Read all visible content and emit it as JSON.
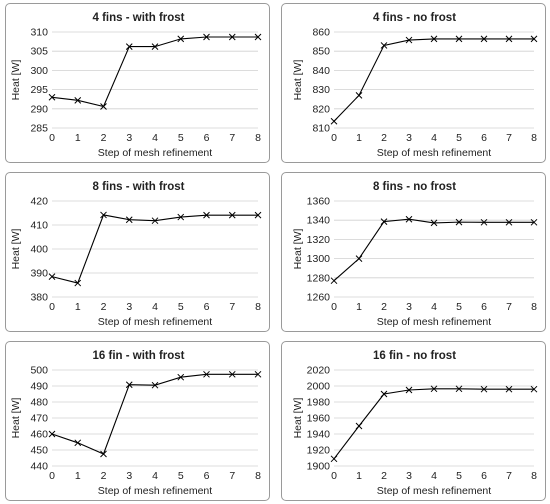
{
  "chart_data": [
    {
      "type": "line",
      "title": "4 fins - with frost",
      "xlabel": "Step of mesh refinement",
      "ylabel": "Heat [W]",
      "x": [
        0,
        1,
        2,
        3,
        4,
        5,
        6,
        7,
        8
      ],
      "y": [
        293,
        292.2,
        290.6,
        306.2,
        306.2,
        308.2,
        308.7,
        308.7,
        308.7
      ],
      "xlim": [
        0,
        8
      ],
      "ylim": [
        285,
        310
      ],
      "xticks": [
        "0",
        "1",
        "2",
        "3",
        "4",
        "5",
        "6",
        "7",
        "8"
      ],
      "yticks": [
        "285",
        "290",
        "295",
        "300",
        "305",
        "310"
      ],
      "grid": "horizontal"
    },
    {
      "type": "line",
      "title": "4 fins - no frost",
      "xlabel": "Step of mesh refinement",
      "ylabel": "Heat [W]",
      "x": [
        0,
        1,
        2,
        3,
        4,
        5,
        6,
        7,
        8
      ],
      "y": [
        813.5,
        827,
        853,
        855.8,
        856.4,
        856.4,
        856.4,
        856.4,
        856.4
      ],
      "xlim": [
        0,
        8
      ],
      "ylim": [
        810,
        860
      ],
      "xticks": [
        "0",
        "1",
        "2",
        "3",
        "4",
        "5",
        "6",
        "7",
        "8"
      ],
      "yticks": [
        "810",
        "820",
        "830",
        "840",
        "850",
        "860"
      ],
      "grid": "horizontal"
    },
    {
      "type": "line",
      "title": "8 fins - with frost",
      "xlabel": "Step of mesh refinement",
      "ylabel": "Heat [W]",
      "x": [
        0,
        1,
        2,
        3,
        4,
        5,
        6,
        7,
        8
      ],
      "y": [
        388.5,
        385.8,
        414.2,
        412.2,
        411.8,
        413.3,
        414.1,
        414.1,
        414.1
      ],
      "xlim": [
        0,
        8
      ],
      "ylim": [
        380,
        420
      ],
      "xticks": [
        "0",
        "1",
        "2",
        "3",
        "4",
        "5",
        "6",
        "7",
        "8"
      ],
      "yticks": [
        "380",
        "390",
        "400",
        "410",
        "420"
      ],
      "grid": "horizontal"
    },
    {
      "type": "line",
      "title": "8 fins - no frost",
      "xlabel": "Step of mesh refinement",
      "ylabel": "Heat [W]",
      "x": [
        0,
        1,
        2,
        3,
        4,
        5,
        6,
        7,
        8
      ],
      "y": [
        1277,
        1300,
        1338.5,
        1341,
        1337.2,
        1338,
        1337.8,
        1337.8,
        1337.8
      ],
      "xlim": [
        0,
        8
      ],
      "ylim": [
        1260,
        1360
      ],
      "xticks": [
        "0",
        "1",
        "2",
        "3",
        "4",
        "5",
        "6",
        "7",
        "8"
      ],
      "yticks": [
        "1260",
        "1280",
        "1300",
        "1320",
        "1340",
        "1360"
      ],
      "grid": "horizontal"
    },
    {
      "type": "line",
      "title": "16 fin - with frost",
      "xlabel": "Step of mesh refinement",
      "ylabel": "Heat [W]",
      "x": [
        0,
        1,
        2,
        3,
        4,
        5,
        6,
        7,
        8
      ],
      "y": [
        460,
        454.5,
        447.5,
        490.8,
        490.5,
        495.5,
        497.3,
        497.3,
        497.3
      ],
      "xlim": [
        0,
        8
      ],
      "ylim": [
        440,
        500
      ],
      "xticks": [
        "0",
        "1",
        "2",
        "3",
        "4",
        "5",
        "6",
        "7",
        "8"
      ],
      "yticks": [
        "440",
        "450",
        "460",
        "470",
        "480",
        "490",
        "500"
      ],
      "grid": "horizontal"
    },
    {
      "type": "line",
      "title": "16 fin - no frost",
      "xlabel": "Step of mesh refinement",
      "ylabel": "Heat [W]",
      "x": [
        0,
        1,
        2,
        3,
        4,
        5,
        6,
        7,
        8
      ],
      "y": [
        1909,
        1950,
        1990,
        1995,
        1996.5,
        1996.5,
        1996,
        1996,
        1996
      ],
      "xlim": [
        0,
        8
      ],
      "ylim": [
        1900,
        2020
      ],
      "xticks": [
        "0",
        "1",
        "2",
        "3",
        "4",
        "5",
        "6",
        "7",
        "8"
      ],
      "yticks": [
        "1900",
        "1920",
        "1940",
        "1960",
        "1980",
        "2000",
        "2020"
      ],
      "grid": "horizontal"
    }
  ]
}
